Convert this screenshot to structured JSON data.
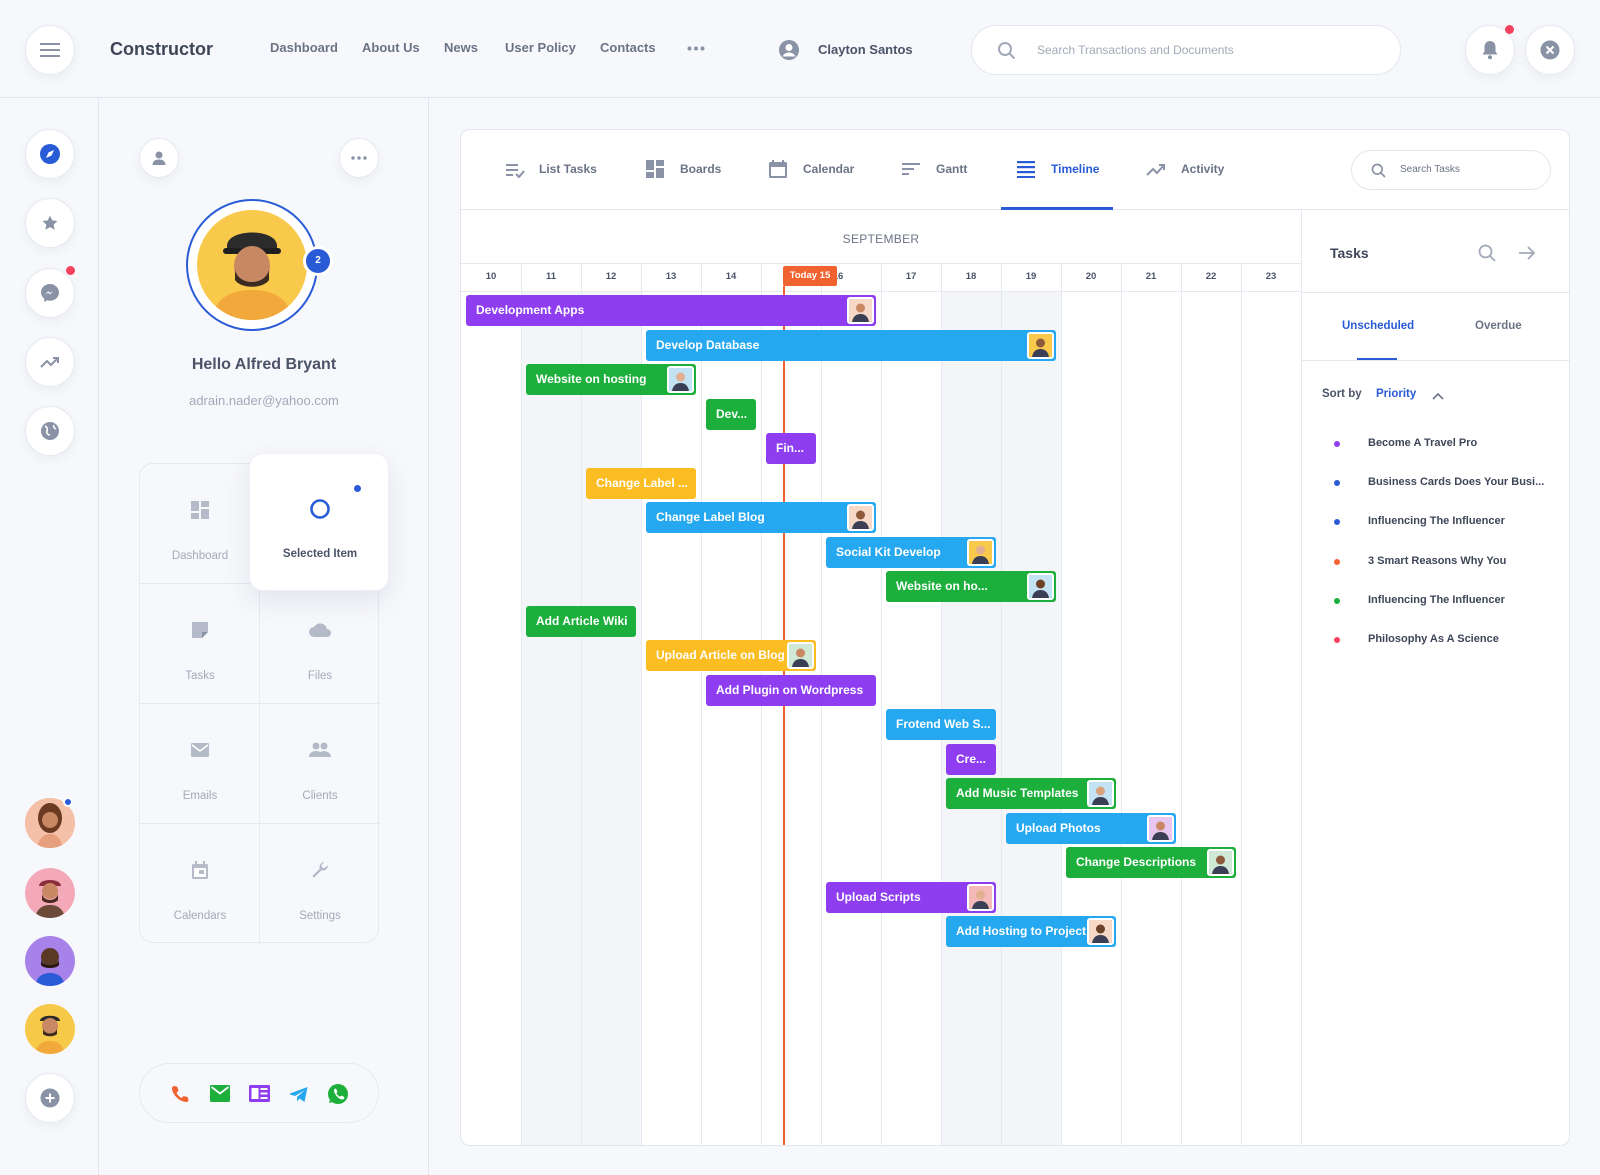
{
  "app": {
    "title": "Constructor"
  },
  "nav": [
    "Dashboard",
    "About Us",
    "News",
    "User Policy",
    "Contacts"
  ],
  "user": {
    "name": "Clayton Santos"
  },
  "search": {
    "placeholder": "Search Transactions and Documents"
  },
  "profile": {
    "greeting": "Hello Alfred Bryant",
    "email": "adrain.nader@yahoo.com",
    "badge": "2"
  },
  "menu": {
    "dashboard": "Dashboard",
    "selected": "Selected Item",
    "tasks": "Tasks",
    "files": "Files",
    "emails": "Emails",
    "clients": "Clients",
    "calendars": "Calendars",
    "settings": "Settings"
  },
  "tabs": {
    "list_tasks": "List Tasks",
    "boards": "Boards",
    "calendar": "Calendar",
    "gantt": "Gantt",
    "timeline": "Timeline",
    "activity": "Activity",
    "search_placeholder": "Search Tasks"
  },
  "timeline": {
    "month": "SEPTEMBER",
    "today_label": "Today 15",
    "days": [
      "10",
      "11",
      "12",
      "13",
      "14",
      "15",
      "16",
      "17",
      "18",
      "19",
      "20",
      "21",
      "22",
      "23"
    ],
    "tasks": [
      {
        "label": "Development Apps",
        "color": "purple",
        "start": "10",
        "end": "16",
        "avatar": true
      },
      {
        "label": "Develop Database",
        "color": "blue",
        "start": "13",
        "end": "19",
        "avatar": true
      },
      {
        "label": "Website on hosting",
        "color": "green",
        "start": "11",
        "end": "13",
        "avatar": true
      },
      {
        "label": "Dev...",
        "color": "green",
        "start": "14",
        "end": "14",
        "avatar": false
      },
      {
        "label": "Fin...",
        "color": "purple",
        "start": "15",
        "end": "15",
        "avatar": false
      },
      {
        "label": "Change Label ...",
        "color": "yellow",
        "start": "12",
        "end": "13",
        "avatar": false
      },
      {
        "label": "Change Label Blog",
        "color": "blue",
        "start": "13",
        "end": "16",
        "avatar": true
      },
      {
        "label": "Social Kit Develop",
        "color": "blue",
        "start": "16",
        "end": "18",
        "avatar": true
      },
      {
        "label": "Website on ho...",
        "color": "green",
        "start": "17",
        "end": "19",
        "avatar": true
      },
      {
        "label": "Add Article Wiki",
        "color": "green",
        "start": "11",
        "end": "12",
        "avatar": false
      },
      {
        "label": "Upload Article on Blog",
        "color": "yellow",
        "start": "13",
        "end": "15",
        "avatar": true
      },
      {
        "label": "Add Plugin on Wordpress",
        "color": "purple",
        "start": "14",
        "end": "16",
        "avatar": false
      },
      {
        "label": "Frotend Web S...",
        "color": "blue",
        "start": "17",
        "end": "18",
        "avatar": false
      },
      {
        "label": "Cre...",
        "color": "purple",
        "start": "18",
        "end": "18",
        "avatar": false
      },
      {
        "label": "Add Music Templates",
        "color": "green",
        "start": "18",
        "end": "20",
        "avatar": true
      },
      {
        "label": "Upload Photos",
        "color": "blue",
        "start": "19",
        "end": "21",
        "avatar": true
      },
      {
        "label": "Change Descriptions",
        "color": "green",
        "start": "20",
        "end": "22",
        "avatar": true
      },
      {
        "label": "Upload Scripts",
        "color": "purple",
        "start": "16",
        "end": "18",
        "avatar": true
      },
      {
        "label": "Add Hosting to Project",
        "color": "blue",
        "start": "18",
        "end": "20",
        "avatar": true
      }
    ]
  },
  "task_panel": {
    "title": "Tasks",
    "tab_unscheduled": "Unscheduled",
    "tab_overdue": "Overdue",
    "sort_by": "Sort by",
    "sort_value": "Priority",
    "items": [
      {
        "label": "Become A Travel Pro",
        "color": "#8e3ef0"
      },
      {
        "label": "Business Cards Does Your Busi...",
        "color": "#2a5bd7"
      },
      {
        "label": "Influencing The Influencer",
        "color": "#2a5bd7"
      },
      {
        "label": "3 Smart Reasons Why You",
        "color": "#f0622f"
      },
      {
        "label": "Influencing The Influencer",
        "color": "#1daf3c"
      },
      {
        "label": "Philosophy As A Science",
        "color": "#f4425f"
      }
    ]
  },
  "colors": {
    "purple": "#8e3ef0",
    "blue": "#26a8f0",
    "green": "#1daf3c",
    "yellow": "#fbbd22",
    "today": "#f0622f",
    "accent": "#2a5bd7"
  }
}
